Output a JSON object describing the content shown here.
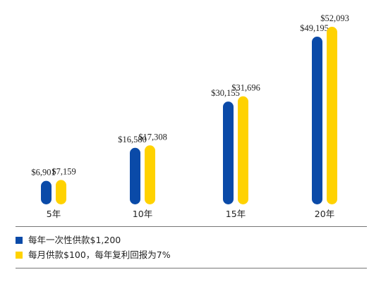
{
  "chart_data": {
    "type": "bar",
    "categories": [
      "5年",
      "10年",
      "15年",
      "20年"
    ],
    "series": [
      {
        "name": "每年一次性供款$1,200",
        "color": "#0a4aa8",
        "values": [
          6901,
          16580,
          30155,
          49195
        ],
        "labels": [
          "$6,901",
          "$16,580",
          "$30,155",
          "$49,195"
        ]
      },
      {
        "name": "每月供款$100，每年复利回报为7%",
        "color": "#ffd200",
        "values": [
          7159,
          17308,
          31696,
          52093
        ],
        "labels": [
          "$7,159",
          "$17,308",
          "$31,696",
          "$52,093"
        ]
      }
    ],
    "title": "",
    "xlabel": "",
    "ylabel": "",
    "legend": "bottom-left",
    "grid": false
  }
}
